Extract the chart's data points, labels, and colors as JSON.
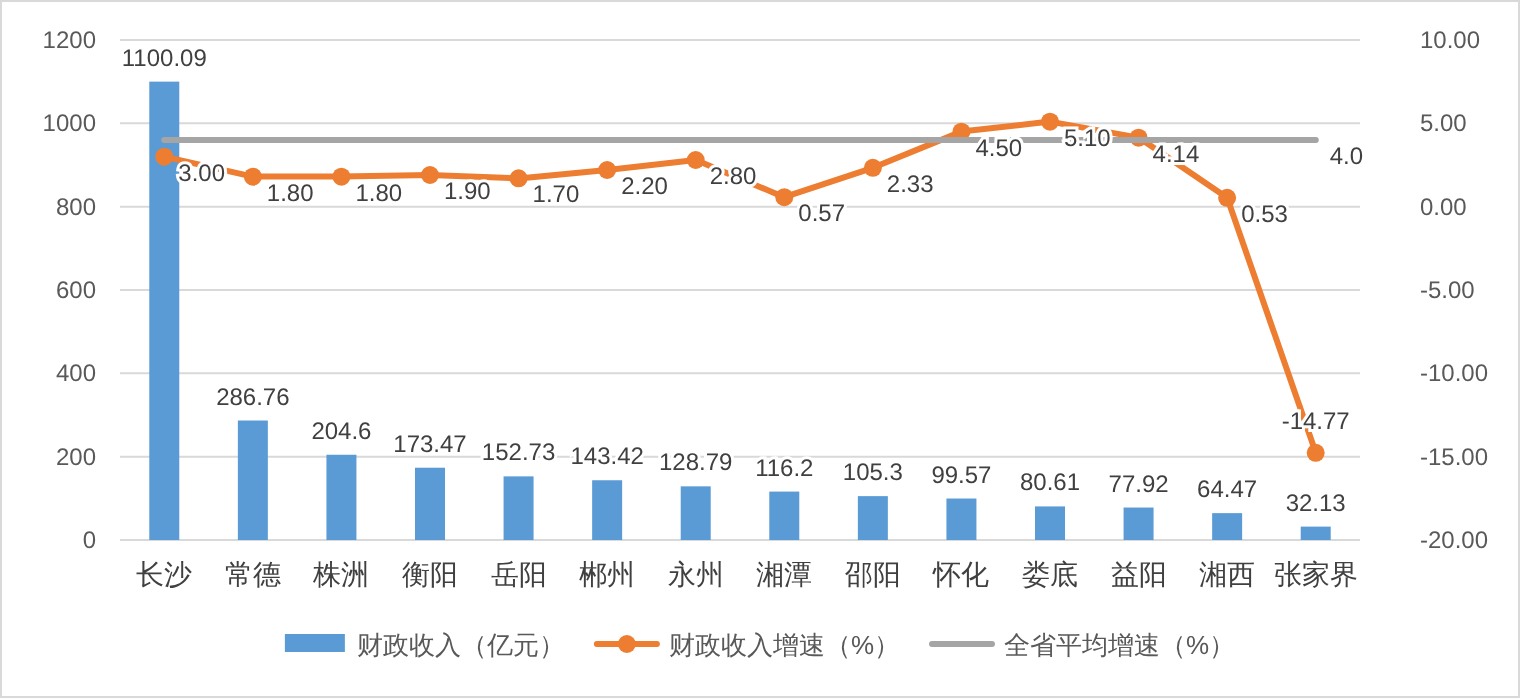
{
  "chart_data": {
    "type": "bar",
    "categories": [
      "长沙",
      "常德",
      "株洲",
      "衡阳",
      "岳阳",
      "郴州",
      "永州",
      "湘潭",
      "邵阳",
      "怀化",
      "娄底",
      "益阳",
      "湘西",
      "张家界"
    ],
    "series": [
      {
        "name": "财政收入（亿元）",
        "color": "#5b9bd5",
        "values": [
          1100.09,
          286.76,
          204.6,
          173.47,
          152.73,
          143.42,
          128.79,
          116.2,
          105.3,
          99.57,
          80.61,
          77.92,
          64.47,
          32.13
        ],
        "value_labels": [
          "1100.09",
          "286.76",
          "204.6",
          "173.47",
          "152.73",
          "143.42",
          "128.79",
          "116.2",
          "105.3",
          "99.57",
          "80.61",
          "77.92",
          "64.47",
          "32.13"
        ]
      },
      {
        "name": "财政收入增速（%）",
        "type": "line",
        "axis": "y2",
        "marker": "circle",
        "color": "#ed7d31",
        "values": [
          3.0,
          1.8,
          1.8,
          1.9,
          1.7,
          2.2,
          2.8,
          0.57,
          2.33,
          4.5,
          5.1,
          4.14,
          0.53,
          -14.77
        ],
        "value_labels": [
          "3.00",
          "1.80",
          "1.80",
          "1.90",
          "1.70",
          "2.20",
          "2.80",
          "0.57",
          "2.33",
          "4.50",
          "5.10",
          "4.14",
          "0.53",
          "-14.77"
        ]
      },
      {
        "name": "全省平均增速（%）",
        "type": "line",
        "axis": "y2",
        "marker": "none",
        "color": "#a5a5a5",
        "values": [
          4.0,
          4.0,
          4.0,
          4.0,
          4.0,
          4.0,
          4.0,
          4.0,
          4.0,
          4.0,
          4.0,
          4.0,
          4.0,
          4.0
        ],
        "value_labels": [
          null,
          null,
          null,
          null,
          null,
          null,
          null,
          null,
          null,
          null,
          null,
          null,
          null,
          "4.0"
        ]
      }
    ],
    "ylim": [
      0,
      1200
    ],
    "yticks": [
      0,
      200,
      400,
      600,
      800,
      1000,
      1200
    ],
    "y2lim": [
      -20,
      10
    ],
    "y2ticks": [
      {
        "value": -20,
        "label": "-20.00"
      },
      {
        "value": -15,
        "label": "-15.00"
      },
      {
        "value": -10,
        "label": "-10.00"
      },
      {
        "value": -5,
        "label": "-5.00"
      },
      {
        "value": 0,
        "label": "0.00"
      },
      {
        "value": 5,
        "label": "5.00"
      },
      {
        "value": 10,
        "label": "10.00"
      }
    ],
    "grid": "y",
    "legend": "bottom"
  }
}
